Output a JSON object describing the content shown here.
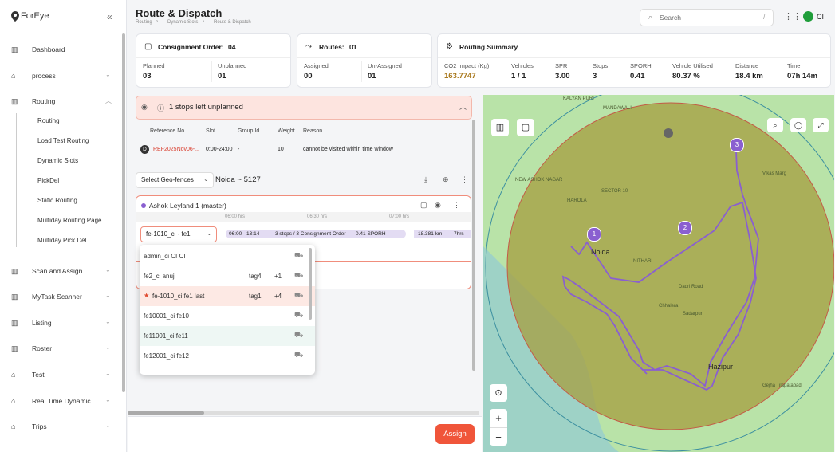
{
  "sidebar": {
    "logo": "ForEye",
    "items": [
      {
        "label": "Dashboard"
      },
      {
        "label": "process"
      },
      {
        "label": "Routing",
        "children": [
          "Routing",
          "Load Test Routing",
          "Dynamic Slots",
          "PickDel",
          "Static Routing",
          "Multiday Routing Page",
          "Multiday Pick Del"
        ]
      },
      {
        "label": "Scan and Assign"
      },
      {
        "label": "MyTask Scanner"
      },
      {
        "label": "Listing"
      },
      {
        "label": "Roster"
      },
      {
        "label": "Test"
      },
      {
        "label": "Real Time Dynamic ..."
      },
      {
        "label": "Trips"
      }
    ]
  },
  "header": {
    "title": "Route & Dispatch",
    "breadcrumbs": [
      "Routing",
      "Dynamic Slots",
      "Route & Dispatch"
    ],
    "search": "Search",
    "shortcut": "/",
    "user": "CI"
  },
  "cards": {
    "consignment": {
      "title": "Consignment Order:",
      "count": "04",
      "stats": [
        {
          "label": "Planned",
          "value": "03"
        },
        {
          "label": "Unplanned",
          "value": "01"
        }
      ]
    },
    "routes": {
      "title": "Routes:",
      "count": "01",
      "stats": [
        {
          "label": "Assigned",
          "value": "00"
        },
        {
          "label": "Un-Assigned",
          "value": "01"
        }
      ]
    },
    "summary": {
      "title": "Routing Summary",
      "stats": [
        {
          "label": "CO2 Impact (Kg)",
          "value": "163.7747"
        },
        {
          "label": "Vehicles",
          "value": "1 / 1"
        },
        {
          "label": "SPR",
          "value": "3.00"
        },
        {
          "label": "Stops",
          "value": "3"
        },
        {
          "label": "SPORH",
          "value": "0.41"
        },
        {
          "label": "Vehicle Utilised",
          "value": "80.37 %"
        },
        {
          "label": "Distance",
          "value": "18.4 km"
        },
        {
          "label": "Time",
          "value": "07h 14m"
        }
      ]
    }
  },
  "unplanned": {
    "title": "1 stops left unplanned",
    "columns": [
      "Reference No",
      "Slot",
      "Group Id",
      "Weight",
      "Reason"
    ],
    "row": {
      "badge": "D",
      "cells": [
        "REF2025Nov06-...",
        "0:00-24:00",
        "-",
        "10",
        "cannot be visited within time window"
      ]
    }
  },
  "toolbar": {
    "geofence": "Select Geo-fences",
    "zone": "Noida ~ 5127"
  },
  "vehicle": {
    "name": "Ashok Leyland 1 (master)",
    "ticks": [
      "06:00 hrs",
      "06:30 hrs",
      "07:00 hrs"
    ],
    "driver": "fe-1010_ci - fe1",
    "chips": [
      "06:00 - 13:14",
      "3 stops / 3 Consignment Order",
      "0.41 SPORH",
      "18.381 km",
      "7hrs"
    ]
  },
  "dropdown": [
    {
      "name": "admin_ci CI CI"
    },
    {
      "name": "fe2_ci anuj",
      "tag": "tag4",
      "extra": "+1"
    },
    {
      "name": "fe-1010_ci fe1 last",
      "tag": "tag1",
      "extra": "+4"
    },
    {
      "name": "fe10001_ci fe10"
    },
    {
      "name": "fe11001_ci fe11"
    },
    {
      "name": "fe12001_ci fe12"
    }
  ],
  "assign": "Assign",
  "map": {
    "labels": [
      "KALYAN PURI",
      "MANDAWALI",
      "NEW ASHOK NAGAR",
      "SECTOR 10",
      "HAROLA",
      "Noida",
      "NITHARI",
      "Dadri Road",
      "Sadarpur",
      "Chhalera",
      "Hazipur",
      "Gejha Tilapatabad",
      "Vikas Marg"
    ],
    "markers": [
      "1",
      "2",
      "3"
    ],
    "zoom_in": "+",
    "zoom_out": "−"
  }
}
